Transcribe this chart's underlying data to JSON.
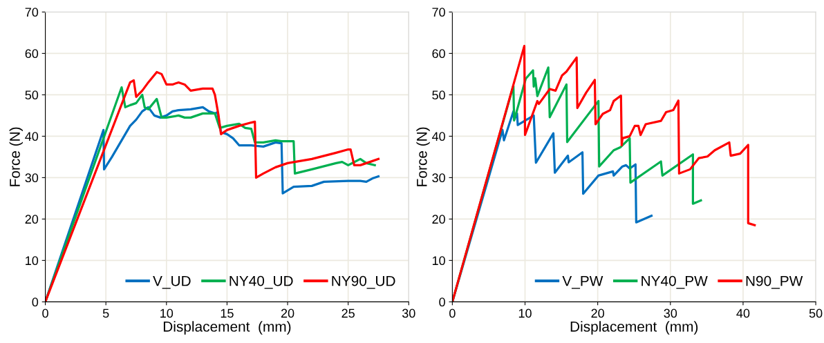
{
  "chart_data": [
    {
      "type": "line",
      "xlabel": "Displacement  (mm)",
      "ylabel": "Force (N)",
      "xlim": [
        0,
        30
      ],
      "xticks": [
        0,
        5,
        10,
        15,
        20,
        25,
        30
      ],
      "ylim": [
        0,
        70
      ],
      "yticks": [
        0,
        10,
        20,
        30,
        40,
        50,
        60,
        70
      ],
      "grid": true,
      "legend": "bottom right",
      "marker": "none",
      "line_style": "solid",
      "series": [
        {
          "name": "V_UD",
          "color": "#0070c0",
          "x": [
            0,
            4.8,
            4.85,
            5.5,
            6.5,
            7,
            7.5,
            8,
            8.5,
            9,
            9.5,
            10,
            10.5,
            11,
            12,
            13,
            13.5,
            14,
            14.2,
            14.5,
            15,
            15.5,
            16,
            17,
            18,
            18.5,
            19,
            19.5,
            19.6,
            20.5,
            22,
            23,
            25,
            26,
            26.5,
            27,
            27.5
          ],
          "values": [
            0,
            41.5,
            32,
            35,
            40,
            42.5,
            44,
            46,
            47,
            45,
            44.5,
            45,
            46,
            46.3,
            46.5,
            47,
            46,
            45.5,
            45.8,
            41,
            40.5,
            39.5,
            37.8,
            37.8,
            37.5,
            38,
            38.5,
            38.3,
            26.2,
            27.8,
            28,
            29,
            29.2,
            29.2,
            29,
            29.8,
            30.3
          ]
        },
        {
          "name": "NY40_UD",
          "color": "#00b050",
          "x": [
            0,
            6.3,
            6.6,
            7,
            7.5,
            8,
            8.2,
            8.5,
            9.2,
            9.6,
            10,
            11,
            11.5,
            12,
            13,
            14,
            14.4,
            15,
            16,
            16.5,
            17,
            17.3,
            18,
            19,
            19.5,
            20.5,
            20.6,
            22,
            24,
            24.5,
            25,
            26,
            26.5,
            27.2
          ],
          "values": [
            0,
            51.8,
            47,
            47.5,
            48,
            50,
            47,
            46.5,
            49,
            44.5,
            44.5,
            45,
            44.5,
            44.5,
            45.5,
            45.5,
            42,
            42.5,
            43,
            42,
            41.8,
            38.5,
            38.5,
            39,
            38.8,
            38.8,
            31,
            32,
            33.5,
            33.8,
            33,
            34.5,
            33.5,
            33
          ]
        },
        {
          "name": "NY90_UD",
          "color": "#ff0000",
          "x": [
            0,
            7,
            7.3,
            7.5,
            8,
            8.5,
            9.2,
            9.6,
            10,
            10.5,
            11,
            11.5,
            12,
            13,
            13.8,
            14,
            14.3,
            14.5,
            15,
            16,
            17,
            17.3,
            17.4,
            18,
            19,
            20,
            22,
            24,
            25,
            25.2,
            25.5,
            26,
            27,
            27.5
          ],
          "values": [
            0,
            53,
            53.5,
            49.5,
            51,
            53,
            55.5,
            55,
            52.5,
            52.5,
            53,
            52.5,
            51,
            51.5,
            51.5,
            50,
            45,
            40.5,
            41.5,
            42.5,
            43.3,
            43.5,
            30,
            31,
            32.5,
            33.5,
            34.5,
            36,
            36.8,
            36.8,
            33,
            33,
            34,
            34.5
          ]
        }
      ]
    },
    {
      "type": "line",
      "xlabel": "Displacement  (mm)",
      "ylabel": "Force (N)",
      "xlim": [
        0,
        50
      ],
      "xticks": [
        0,
        10,
        20,
        30,
        40,
        50
      ],
      "ylim": [
        0,
        70
      ],
      "yticks": [
        0,
        10,
        20,
        30,
        40,
        50,
        60,
        70
      ],
      "grid": true,
      "legend": "bottom right",
      "marker": "none",
      "line_style": "solid",
      "series": [
        {
          "name": "V_PW",
          "color": "#0070c0",
          "x": [
            0,
            6.9,
            7.1,
            8.4,
            8.5,
            8.9,
            9.0,
            11.2,
            11.5,
            13.9,
            14.1,
            15.9,
            16,
            17.9,
            18,
            20.1,
            22.1,
            22.2,
            23.4,
            23.9,
            24.4,
            25.2,
            25.3,
            27.4
          ],
          "values": [
            0,
            41.5,
            39,
            46,
            44,
            45.5,
            42.7,
            45,
            33.6,
            40.7,
            31.2,
            35.3,
            33.7,
            36.1,
            26.1,
            30.5,
            31.5,
            30.5,
            32.7,
            33,
            32.2,
            33.2,
            19.2,
            20.8
          ]
        },
        {
          "name": "NY40_PW",
          "color": "#00b050",
          "x": [
            0,
            8.4,
            8.5,
            10.1,
            11.1,
            11.2,
            11.4,
            11.7,
            13.2,
            13.4,
            15.7,
            15.8,
            20.1,
            20.2,
            22.2,
            23.1,
            24.4,
            24.5,
            28.7,
            28.9,
            33.1,
            33.1,
            34.2
          ],
          "values": [
            0,
            52.2,
            43.8,
            53.9,
            55.9,
            52,
            54,
            49.7,
            56.6,
            44.6,
            52.5,
            38.6,
            48.5,
            32.7,
            36.6,
            37.3,
            39.5,
            28.8,
            33.9,
            30.5,
            35.6,
            23.7,
            24.5
          ]
        },
        {
          "name": "N90_PW",
          "color": "#ff0000",
          "x": [
            0,
            9.9,
            10,
            10.7,
            11.7,
            11.9,
            13.4,
            14.2,
            15.1,
            15.7,
            17.1,
            17.2,
            18.4,
            19.6,
            19.7,
            20.7,
            21.7,
            22.2,
            23.2,
            23.3,
            23.4,
            24.4,
            25.1,
            25.6,
            25.9,
            26.6,
            28.7,
            29.4,
            30.4,
            31.1,
            31.2,
            32.7,
            33.9,
            35.1,
            36.1,
            38.1,
            38.3,
            39.6,
            40.7,
            40.7,
            41.6
          ],
          "values": [
            0,
            61.8,
            40.3,
            43.7,
            48.5,
            47.8,
            51.4,
            51,
            54.7,
            55.6,
            59,
            46.8,
            50.5,
            53.6,
            42.9,
            45.4,
            46.3,
            48.5,
            49.8,
            37.8,
            39.5,
            40,
            42.5,
            42.5,
            40.3,
            42.9,
            43.7,
            45.8,
            46.3,
            48.6,
            31,
            32,
            34.7,
            35.1,
            36.6,
            38.5,
            35.3,
            35.8,
            37.9,
            19,
            18.5
          ]
        }
      ]
    }
  ]
}
